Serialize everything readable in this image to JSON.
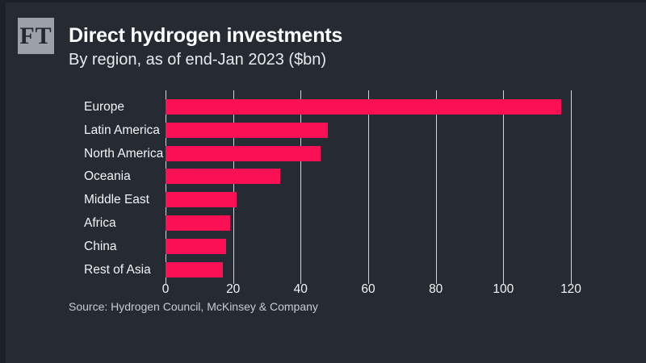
{
  "logo": {
    "text": "FT"
  },
  "header": {
    "title": "Direct hydrogen investments",
    "subtitle": "By region, as of end-Jan 2023 ($bn)"
  },
  "chart_data": {
    "type": "bar",
    "orientation": "horizontal",
    "title": "Direct hydrogen investments",
    "subtitle": "By region, as of end-Jan 2023 ($bn)",
    "categories": [
      "Europe",
      "Latin America",
      "North America",
      "Oceania",
      "Middle East",
      "Africa",
      "China",
      "Rest of Asia"
    ],
    "values": [
      117,
      48,
      46,
      34,
      21,
      19,
      18,
      17
    ],
    "xlabel": "",
    "ylabel": "",
    "xlim": [
      0,
      120
    ],
    "xticks": [
      0,
      20,
      40,
      60,
      80,
      100,
      120
    ],
    "grid": true,
    "legend": false,
    "bar_color": "#fb0f55",
    "background_color": "#262a33",
    "gridline_color": "rgba(255,255,255,0.8)",
    "text_color": "#f2f4f6"
  },
  "footer": {
    "source": "Source: Hydrogen Council, McKinsey & Company"
  }
}
